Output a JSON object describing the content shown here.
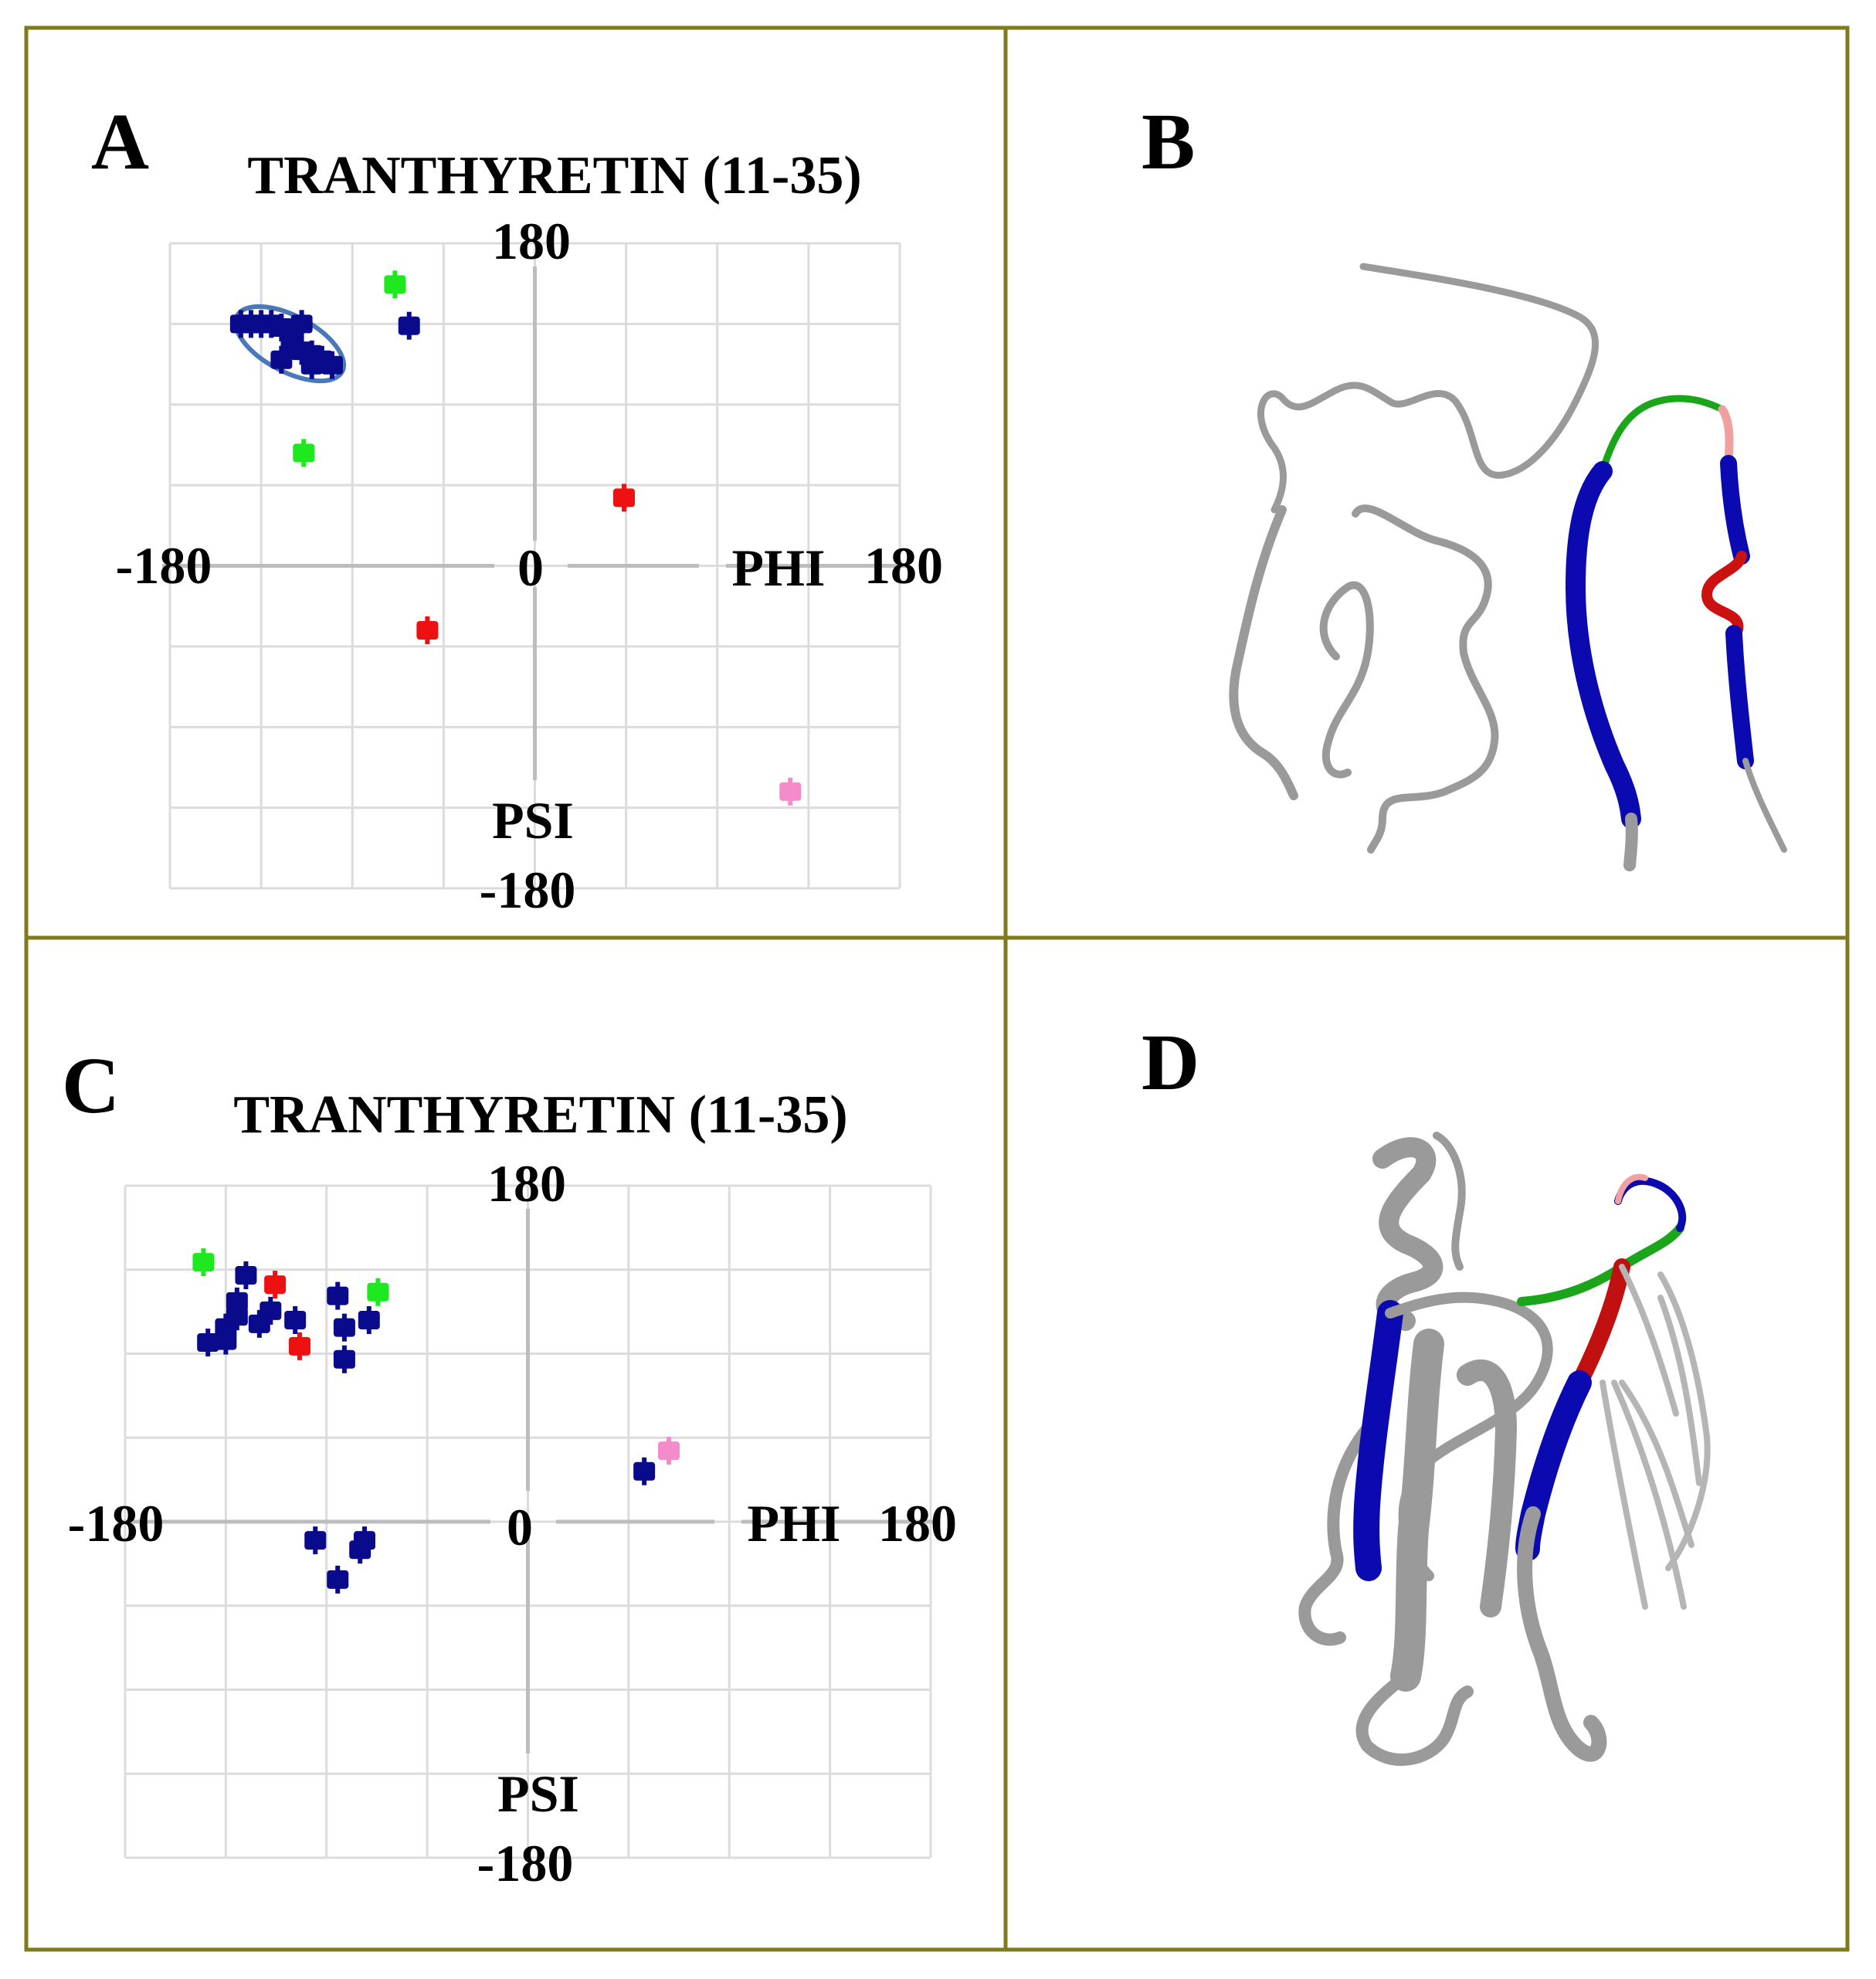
{
  "colors": {
    "frame": "#7f7a1c",
    "grid": "#dcdcdc",
    "axis": "#bdbdbd",
    "blue": "#0a0a8c",
    "green": "#1ee81e",
    "red": "#ee1111",
    "pink": "#f48ccc",
    "ellipse": "#4a78b8",
    "ribbon_gray": "#9a9a9a",
    "ribbon_dark": "#6a6a6a"
  },
  "panels": {
    "A": {
      "letter": "A"
    },
    "B": {
      "letter": "B"
    },
    "C": {
      "letter": "C"
    },
    "D": {
      "letter": "D"
    }
  },
  "chart_data": [
    {
      "panel": "A",
      "type": "scatter",
      "title": "TRANTHYRETIN (11-35)",
      "xlabel": "PHI",
      "ylabel": "PSI",
      "xlim": [
        -180,
        180
      ],
      "ylim": [
        -180,
        180
      ],
      "tick_labels": {
        "y_top": "180",
        "y_bottom": "-180",
        "x_left": "-180",
        "x_right": "180",
        "origin": "0"
      },
      "grid": true,
      "highlight": "ellipse around upper-left cluster",
      "series": [
        {
          "color": "blue",
          "points": [
            [
              -145,
              135
            ],
            [
              -140,
              135
            ],
            [
              -135,
              135
            ],
            [
              -130,
              135
            ],
            [
              -125,
              133
            ],
            [
              -115,
              135
            ],
            [
              -120,
              125
            ],
            [
              -115,
              120
            ],
            [
              -110,
              118
            ],
            [
              -105,
              115
            ],
            [
              -110,
              112
            ],
            [
              -100,
              112
            ],
            [
              -125,
              115
            ],
            [
              -62,
              134
            ]
          ]
        },
        {
          "color": "green",
          "points": [
            [
              -69,
              157
            ],
            [
              -114,
              63
            ]
          ]
        },
        {
          "color": "red",
          "points": [
            [
              44,
              38
            ],
            [
              -53,
              -36
            ]
          ]
        },
        {
          "color": "pink",
          "points": [
            [
              126,
              -126
            ]
          ]
        }
      ]
    },
    {
      "panel": "C",
      "type": "scatter",
      "title": "TRANTHYRETIN (11-35)",
      "xlabel": "PHI",
      "ylabel": "PSI",
      "xlim": [
        -180,
        180
      ],
      "ylim": [
        -180,
        180
      ],
      "tick_labels": {
        "y_top": "180",
        "y_bottom": "-180",
        "x_left": "-180",
        "x_right": "180",
        "origin": "0"
      },
      "grid": true,
      "series": [
        {
          "color": "blue",
          "points": [
            [
              -126,
              132
            ],
            [
              -130,
              118
            ],
            [
              -115,
              113
            ],
            [
              -130,
              110
            ],
            [
              -120,
              106
            ],
            [
              -135,
              104
            ],
            [
              -104,
              108
            ],
            [
              -85,
              121
            ],
            [
              -82,
              104
            ],
            [
              -143,
              96
            ],
            [
              -135,
              97
            ],
            [
              -71,
              108
            ],
            [
              -82,
              87
            ],
            [
              -95,
              -10
            ],
            [
              -73,
              -10
            ],
            [
              -75,
              -15
            ],
            [
              -85,
              -31
            ],
            [
              52,
              27
            ]
          ]
        },
        {
          "color": "green",
          "points": [
            [
              -145,
              139
            ],
            [
              -67,
              123
            ]
          ]
        },
        {
          "color": "red",
          "points": [
            [
              -113,
              127
            ],
            [
              -102,
              94
            ]
          ]
        },
        {
          "color": "pink",
          "points": [
            [
              63,
              38
            ]
          ]
        }
      ]
    }
  ]
}
